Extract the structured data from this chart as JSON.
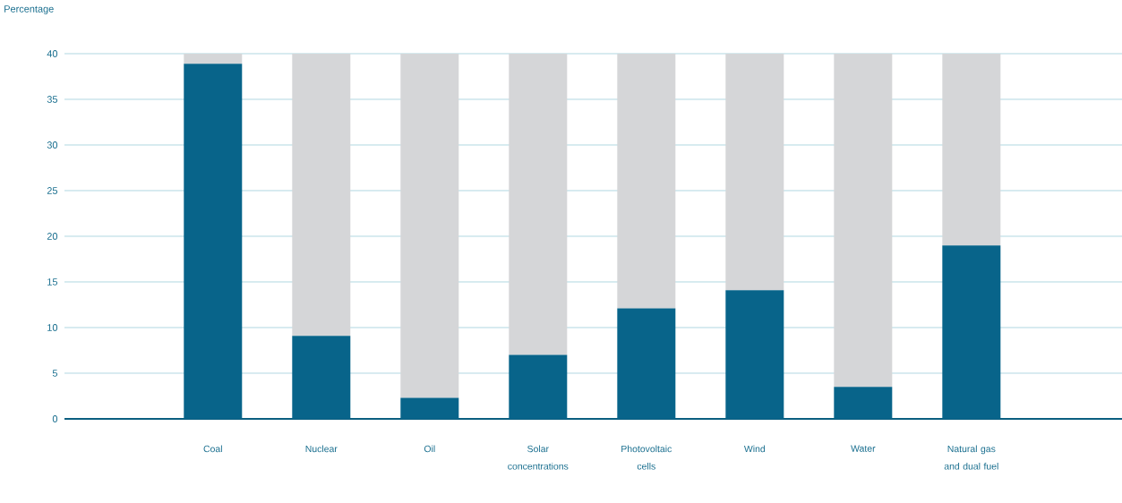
{
  "chart_data": {
    "type": "bar",
    "ylabel": "Percentage",
    "stacked": true,
    "categories": [
      "Coal",
      "Nuclear",
      "Oil",
      "Solar concentrations",
      "Photovoltaic cells",
      "Wind",
      "Water",
      "Natural gas and dual fuel"
    ],
    "series": [
      {
        "color": "#08648a",
        "values": [
          38.9,
          9.1,
          2.3,
          7.0,
          12.1,
          14.1,
          3.5,
          19.0
        ]
      },
      {
        "color": "#d5d6d8",
        "values": [
          1.1,
          30.9,
          37.7,
          33.0,
          27.9,
          25.9,
          36.5,
          21.0
        ]
      }
    ],
    "ylim": [
      0,
      40
    ],
    "yticks": [
      {
        "value": 0,
        "label": "0"
      },
      {
        "value": 5,
        "label": "5"
      },
      {
        "value": 10,
        "label": "10"
      },
      {
        "value": 15,
        "label": "15"
      },
      {
        "value": 20,
        "label": "20"
      },
      {
        "value": 25,
        "label": "25"
      },
      {
        "value": 30,
        "label": "30"
      },
      {
        "value": 35,
        "label": "35"
      },
      {
        "value": 40,
        "label": "40"
      }
    ],
    "grid": "y"
  }
}
